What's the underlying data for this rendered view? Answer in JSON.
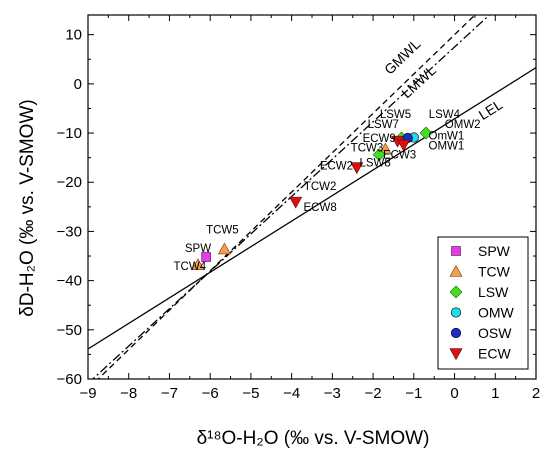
{
  "chart_data": {
    "type": "scatter",
    "xlabel": "δ¹⁸O-H₂O (‰ vs. V-SMOW)",
    "ylabel": "δD-H₂O (‰ vs. V-SMOW)",
    "xlim": [
      -9,
      2
    ],
    "ylim": [
      -60,
      14
    ],
    "x_ticks": [
      -9,
      -8,
      -7,
      -6,
      -5,
      -4,
      -3,
      -2,
      -1,
      0,
      1,
      2
    ],
    "y_ticks": [
      10,
      0,
      -10,
      -20,
      -30,
      -40,
      -50,
      -60
    ],
    "grid": false,
    "legend_position": "bottom-right",
    "series": [
      {
        "name": "SPW",
        "marker": "square",
        "color": "#e040e0",
        "points": [
          {
            "x": -6.1,
            "y": -35.2
          }
        ]
      },
      {
        "name": "TCW",
        "marker": "triangle-up",
        "color": "#f0a050",
        "points": [
          {
            "x": -6.3,
            "y": -36.8
          },
          {
            "x": -5.65,
            "y": -33.6
          },
          {
            "x": -1.7,
            "y": -13.3
          }
        ]
      },
      {
        "name": "LSW",
        "marker": "diamond",
        "color": "#44dd22",
        "points": [
          {
            "x": -1.85,
            "y": -14.4
          },
          {
            "x": -1.3,
            "y": -11.0
          },
          {
            "x": -0.7,
            "y": -10.0
          }
        ]
      },
      {
        "name": "OMW",
        "marker": "circle",
        "color": "#22dddd",
        "points": [
          {
            "x": -1.0,
            "y": -10.9
          }
        ]
      },
      {
        "name": "OSW",
        "marker": "circle",
        "color": "#1a2fc0",
        "points": [
          {
            "x": -1.15,
            "y": -11.0
          }
        ]
      },
      {
        "name": "ECW",
        "marker": "triangle-down",
        "color": "#dd1010",
        "points": [
          {
            "x": -3.9,
            "y": -24.0
          },
          {
            "x": -2.4,
            "y": -17.0
          },
          {
            "x": -1.4,
            "y": -11.6
          },
          {
            "x": -1.25,
            "y": -12.4
          }
        ]
      }
    ],
    "lines": [
      {
        "name": "GMWL",
        "style": "dash",
        "slope": 8,
        "intercept": 10
      },
      {
        "name": "LMWL",
        "style": "dashdot",
        "slope": 7.6,
        "intercept": 7.5
      },
      {
        "name": "LEL",
        "style": "solid",
        "slope": 5.2,
        "intercept": -7.1
      }
    ],
    "point_labels": [
      {
        "text": "SPW",
        "x": -6.3,
        "y": -34.2
      },
      {
        "text": "TCW5",
        "x": -5.7,
        "y": -30.4
      },
      {
        "text": "TCW4",
        "x": -6.5,
        "y": -37.8
      },
      {
        "text": "TCW2",
        "x": -3.3,
        "y": -21.6
      },
      {
        "text": "ECW8",
        "x": -3.3,
        "y": -25.8
      },
      {
        "text": "ECW2",
        "x": -2.9,
        "y": -17.4
      },
      {
        "text": "LSW8",
        "x": -1.95,
        "y": -16.8
      },
      {
        "text": "TCW3",
        "x": -2.15,
        "y": -13.8
      },
      {
        "text": "ECW3",
        "x": -1.35,
        "y": -15.2
      },
      {
        "text": "ECW9",
        "x": -1.85,
        "y": -11.8
      },
      {
        "text": "LSW7",
        "x": -1.75,
        "y": -9.0
      },
      {
        "text": "LSW5",
        "x": -1.45,
        "y": -6.9
      },
      {
        "text": "LSW4",
        "x": -0.25,
        "y": -6.9
      },
      {
        "text": "OMW2",
        "x": 0.2,
        "y": -9.0
      },
      {
        "text": "OmW1",
        "x": -0.2,
        "y": -11.3
      },
      {
        "text": "OMW1",
        "x": -0.2,
        "y": -13.3
      }
    ]
  }
}
